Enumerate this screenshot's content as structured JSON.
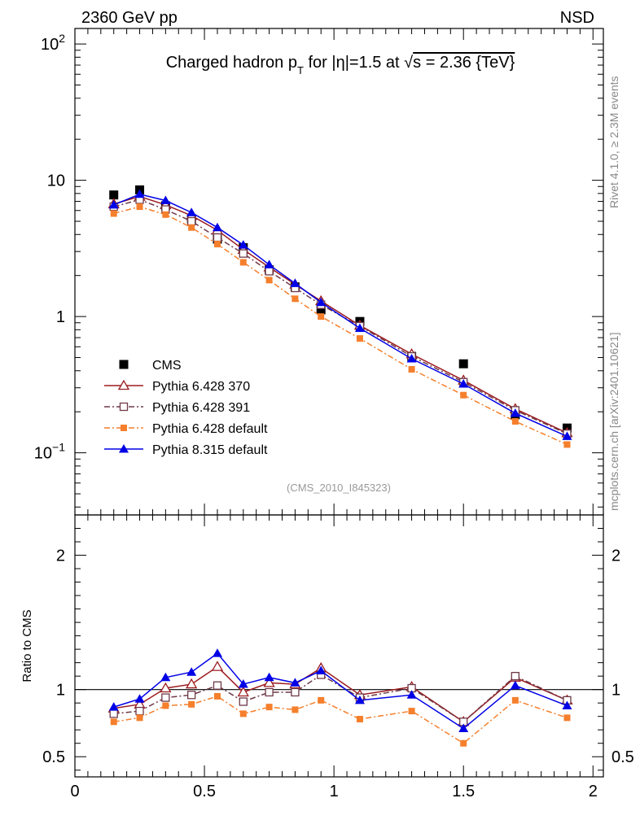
{
  "header": {
    "left": "2360 GeV pp",
    "right": "NSD"
  },
  "side_labels": {
    "rivet": "Rivet 4.1.0, ≥ 2.3M events",
    "mcplots": "mcplots.cern.ch [arXiv:2401.10621]"
  },
  "colors": {
    "cms": "#000000",
    "p370": "#9b1b1f",
    "p391": "#6e3a48",
    "p6def": "#f57f2c",
    "p8def": "#0000e6"
  },
  "chart_data": [
    {
      "type": "line",
      "panel": "main",
      "title": "Charged hadron p_T for |η|=1.5 at √s = 2.36 {TeV}",
      "title_parts": {
        "a": "Charged hadron p",
        "sub": "T",
        "b": " for |η|=1.5 at ",
        "root": "√",
        "c": "s = 2.36 {TeV}"
      },
      "analysis_tag": "(CMS_2010_I845323)",
      "yscale": "log",
      "ylim": [
        0.035,
        130
      ],
      "xlim": [
        0,
        2.04
      ],
      "y_ticks": [
        {
          "value": 100,
          "base": "10",
          "exp": "2"
        },
        {
          "value": 10,
          "base": "10",
          "exp": ""
        },
        {
          "value": 1,
          "base": "1",
          "exp": ""
        },
        {
          "value": 0.1,
          "base": "10",
          "exp": "−1"
        }
      ],
      "x": [
        0.15,
        0.25,
        0.35,
        0.45,
        0.55,
        0.65,
        0.75,
        0.85,
        0.95,
        1.1,
        1.3,
        1.5,
        1.7,
        1.9
      ],
      "series": [
        {
          "name": "CMS",
          "key": "cms",
          "marker": "square-filled",
          "line": "none",
          "values": [
            7.8,
            8.5,
            6.5,
            5.2,
            3.7,
            3.2,
            2.2,
            1.65,
            1.12,
            0.92,
            0.51,
            0.45,
            0.19,
            0.152
          ]
        },
        {
          "name": "Pythia 6.428 370",
          "key": "p370",
          "marker": "triangle-open",
          "line": "solid",
          "values": [
            6.7,
            7.6,
            6.6,
            5.5,
            4.3,
            3.1,
            2.3,
            1.72,
            1.3,
            0.86,
            0.53,
            0.34,
            0.21,
            0.14
          ]
        },
        {
          "name": "Pythia 6.428 391",
          "key": "p391",
          "marker": "square-open",
          "line": "dashdot",
          "values": [
            6.4,
            7.2,
            6.1,
            5.0,
            3.8,
            2.9,
            2.15,
            1.62,
            1.22,
            0.85,
            0.51,
            0.33,
            0.205,
            0.138
          ]
        },
        {
          "name": "Pythia 6.428 default",
          "key": "p6def",
          "marker": "square-filled-small",
          "line": "dashdot",
          "values": [
            5.7,
            6.4,
            5.6,
            4.5,
            3.4,
            2.5,
            1.85,
            1.35,
            1.0,
            0.69,
            0.41,
            0.265,
            0.17,
            0.115
          ]
        },
        {
          "name": "Pythia 8.315 default",
          "key": "p8def",
          "marker": "triangle-filled",
          "line": "solid",
          "values": [
            6.6,
            7.9,
            7.1,
            5.8,
            4.5,
            3.35,
            2.4,
            1.75,
            1.27,
            0.82,
            0.49,
            0.32,
            0.195,
            0.132
          ]
        }
      ],
      "legend": [
        {
          "label": "CMS",
          "key": "cms"
        },
        {
          "label": "Pythia 6.428 370",
          "key": "p370"
        },
        {
          "label": "Pythia 6.428 391",
          "key": "p391"
        },
        {
          "label": "Pythia 6.428 default",
          "key": "p6def"
        },
        {
          "label": "Pythia 8.315 default",
          "key": "p8def"
        }
      ],
      "legend_position": "bottom-left"
    },
    {
      "type": "line",
      "panel": "ratio",
      "ylabel": "Ratio to CMS",
      "yscale": "linear",
      "ylim": [
        0.35,
        2.3
      ],
      "xlim": [
        0,
        2.04
      ],
      "reference_line": 1,
      "y_ticks": [
        0.5,
        1,
        2
      ],
      "y_tick_labels": [
        "0.5",
        "1",
        "2"
      ],
      "x_ticks": [
        0,
        0.5,
        1,
        1.5,
        2
      ],
      "x_tick_labels": [
        "0",
        "0.5",
        "1",
        "1.5",
        "2"
      ],
      "x": [
        0.15,
        0.25,
        0.35,
        0.45,
        0.55,
        0.65,
        0.75,
        0.85,
        0.95,
        1.1,
        1.3,
        1.5,
        1.7,
        1.9
      ],
      "series": [
        {
          "name": "Pythia 6.428 370",
          "key": "p370",
          "marker": "triangle-open",
          "line": "solid",
          "values": [
            0.86,
            0.89,
            1.01,
            1.04,
            1.17,
            0.98,
            1.05,
            1.04,
            1.16,
            0.96,
            1.02,
            0.76,
            1.09,
            0.92
          ]
        },
        {
          "name": "Pythia 6.428 391",
          "key": "p391",
          "marker": "square-open",
          "line": "dashdot",
          "values": [
            0.82,
            0.84,
            0.94,
            0.96,
            1.03,
            0.91,
            0.98,
            0.98,
            1.11,
            0.94,
            1.01,
            0.76,
            1.1,
            0.92
          ]
        },
        {
          "name": "Pythia 6.428 default",
          "key": "p6def",
          "marker": "square-filled-small",
          "line": "dashdot",
          "values": [
            0.76,
            0.79,
            0.88,
            0.89,
            0.95,
            0.82,
            0.87,
            0.85,
            0.92,
            0.78,
            0.84,
            0.6,
            0.92,
            0.79
          ]
        },
        {
          "name": "Pythia 8.315 default",
          "key": "p8def",
          "marker": "triangle-filled",
          "line": "solid",
          "values": [
            0.87,
            0.93,
            1.09,
            1.13,
            1.27,
            1.04,
            1.09,
            1.05,
            1.14,
            0.92,
            0.96,
            0.71,
            1.03,
            0.88
          ]
        }
      ]
    }
  ]
}
